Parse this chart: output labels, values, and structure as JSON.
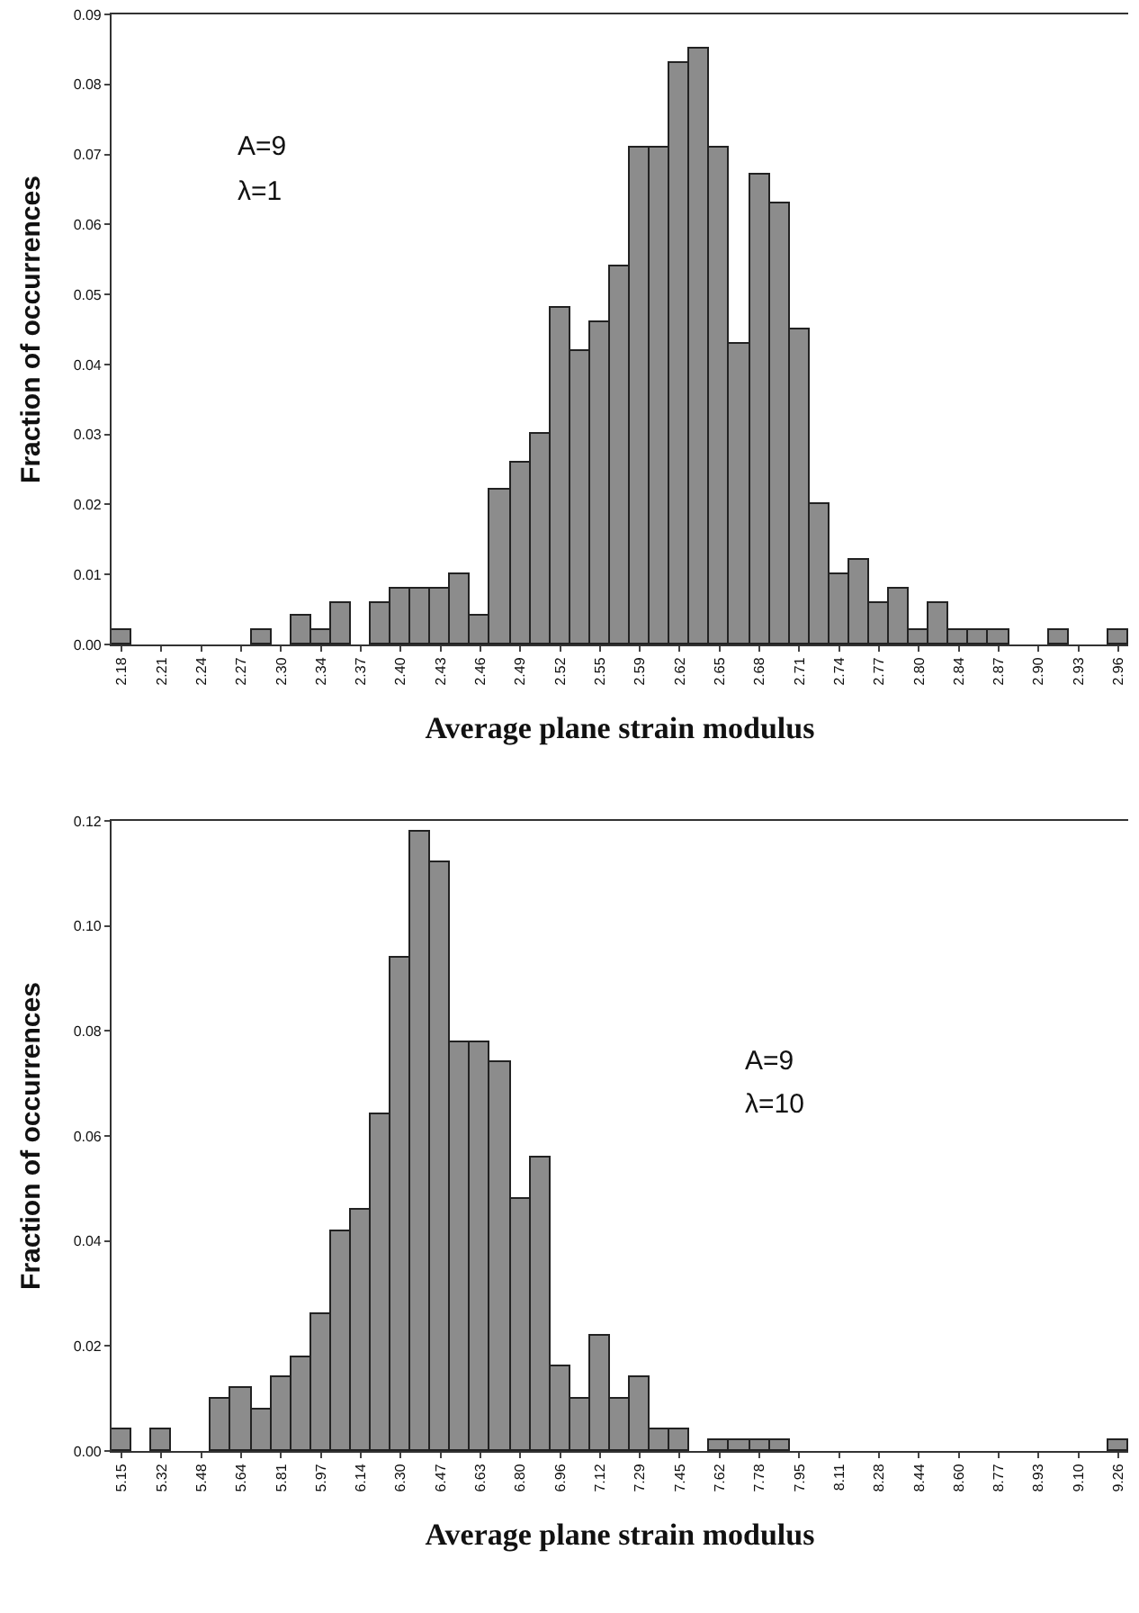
{
  "chart_data": [
    {
      "type": "bar",
      "xlabel": "Average plane strain modulus",
      "ylabel": "Fraction of occurrences",
      "annotations": [
        "A=9",
        "λ=1"
      ],
      "categories": [
        "2.18",
        null,
        "2.21",
        null,
        "2.24",
        null,
        "2.27",
        null,
        "2.30",
        null,
        "2.34",
        null,
        "2.37",
        null,
        "2.40",
        null,
        "2.43",
        null,
        "2.46",
        null,
        "2.49",
        null,
        "2.52",
        null,
        "2.55",
        null,
        "2.59",
        null,
        "2.62",
        null,
        "2.65",
        null,
        "2.68",
        null,
        "2.71",
        null,
        "2.74",
        null,
        "2.77",
        null,
        "2.80",
        null,
        "2.84",
        null,
        "2.87",
        null,
        "2.90",
        null,
        "2.93",
        null,
        "2.96"
      ],
      "values": [
        0.002,
        0,
        0,
        0,
        0,
        0,
        0,
        0.002,
        0,
        0.004,
        0.002,
        0.006,
        0,
        0.006,
        0.008,
        0.008,
        0.008,
        0.01,
        0.004,
        0.022,
        0.026,
        0.03,
        0.048,
        0.042,
        0.046,
        0.054,
        0.071,
        0.071,
        0.083,
        0.085,
        0.071,
        0.043,
        0.067,
        0.063,
        0.045,
        0.02,
        0.01,
        0.012,
        0.006,
        0.008,
        0.002,
        0.006,
        0.002,
        0.002,
        0.002,
        0,
        0,
        0.002,
        0,
        0,
        0.002
      ],
      "color": "#8c8c8c",
      "ylim": [
        0,
        0.09
      ],
      "yticks": [
        {
          "value": 0,
          "label": "0.00"
        },
        {
          "value": 0.01,
          "label": "0.01"
        },
        {
          "value": 0.02,
          "label": "0.02"
        },
        {
          "value": 0.03,
          "label": "0.03"
        },
        {
          "value": 0.04,
          "label": "0.04"
        },
        {
          "value": 0.05,
          "label": "0.05"
        },
        {
          "value": 0.06,
          "label": "0.06"
        },
        {
          "value": 0.07,
          "label": "0.07"
        },
        {
          "value": 0.08,
          "label": "0.08"
        },
        {
          "value": 0.09,
          "label": "0.09"
        }
      ],
      "grid": false,
      "legend": false
    },
    {
      "type": "bar",
      "xlabel": "Average plane strain modulus",
      "ylabel": "Fraction of occurrences",
      "annotations": [
        "A=9",
        "λ=10"
      ],
      "categories": [
        "5.15",
        null,
        "5.32",
        null,
        "5.48",
        null,
        "5.64",
        null,
        "5.81",
        null,
        "5.97",
        null,
        "6.14",
        null,
        "6.30",
        null,
        "6.47",
        null,
        "6.63",
        null,
        "6.80",
        null,
        "6.96",
        null,
        "7.12",
        null,
        "7.29",
        null,
        "7.45",
        null,
        "7.62",
        null,
        "7.78",
        null,
        "7.95",
        null,
        "8.11",
        null,
        "8.28",
        null,
        "8.44",
        null,
        "8.60",
        null,
        "8.77",
        null,
        "8.93",
        null,
        "9.10",
        null,
        "9.26"
      ],
      "values": [
        0.004,
        0,
        0.004,
        0,
        0,
        0.01,
        0.012,
        0.008,
        0.014,
        0.018,
        0.026,
        0.042,
        0.046,
        0.064,
        0.094,
        0.118,
        0.112,
        0.078,
        0.078,
        0.074,
        0.048,
        0.056,
        0.016,
        0.01,
        0.022,
        0.01,
        0.014,
        0.004,
        0.004,
        0,
        0.002,
        0.002,
        0.002,
        0.002,
        0,
        0,
        0,
        0,
        0,
        0,
        0,
        0,
        0,
        0,
        0,
        0,
        0,
        0,
        0,
        0,
        0.002
      ],
      "color": "#8c8c8c",
      "ylim": [
        0,
        0.12
      ],
      "yticks": [
        {
          "value": 0,
          "label": "0.00"
        },
        {
          "value": 0.02,
          "label": "0.02"
        },
        {
          "value": 0.04,
          "label": "0.04"
        },
        {
          "value": 0.06,
          "label": "0.06"
        },
        {
          "value": 0.08,
          "label": "0.08"
        },
        {
          "value": 0.1,
          "label": "0.10"
        },
        {
          "value": 0.12,
          "label": "0.12"
        }
      ],
      "grid": false,
      "legend": false
    }
  ]
}
